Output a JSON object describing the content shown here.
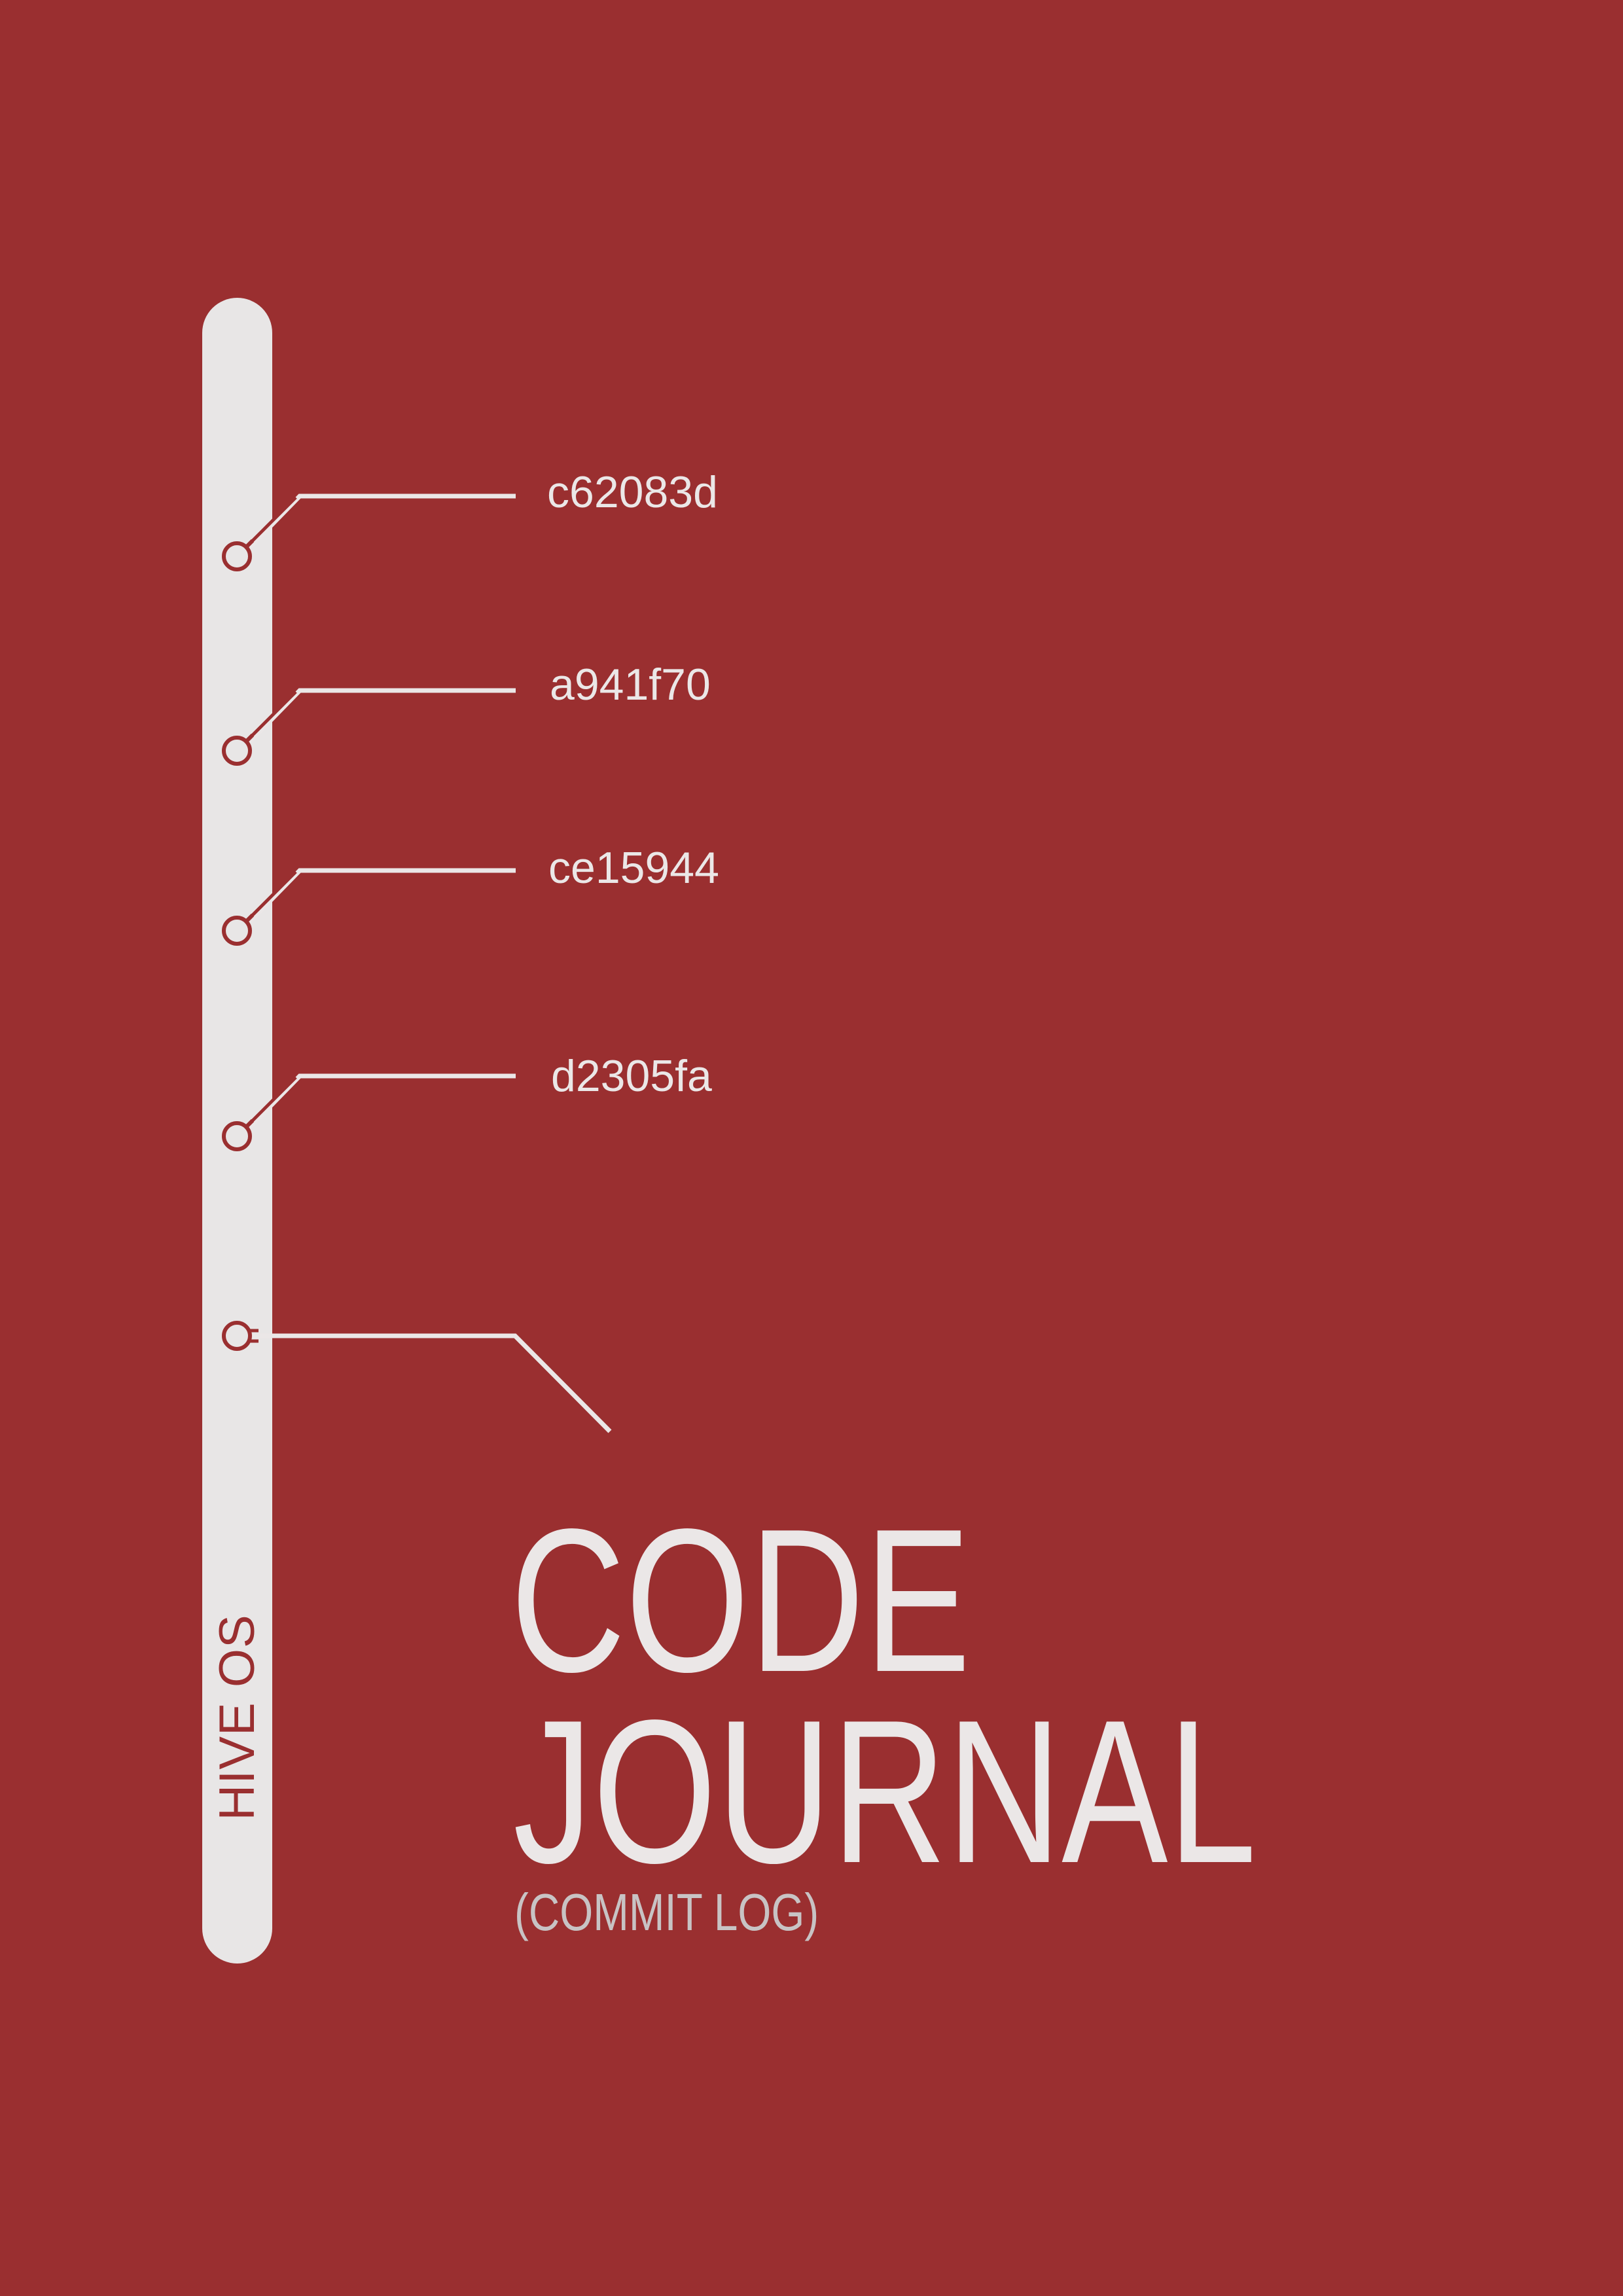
{
  "cover": {
    "publisher": "HIVE OS",
    "title_line_1": "CODE",
    "title_line_2": "JOURNAL",
    "subtitle": "(COMMIT LOG)"
  },
  "timeline": {
    "commits": [
      {
        "hash": "c62083d"
      },
      {
        "hash": "a941f70"
      },
      {
        "hash": "ce15944"
      },
      {
        "hash": "d2305fa"
      }
    ]
  },
  "colors": {
    "background": "#9a2f30",
    "foreground": "#ebe7e7",
    "subtitle": "#c8c3c4"
  }
}
